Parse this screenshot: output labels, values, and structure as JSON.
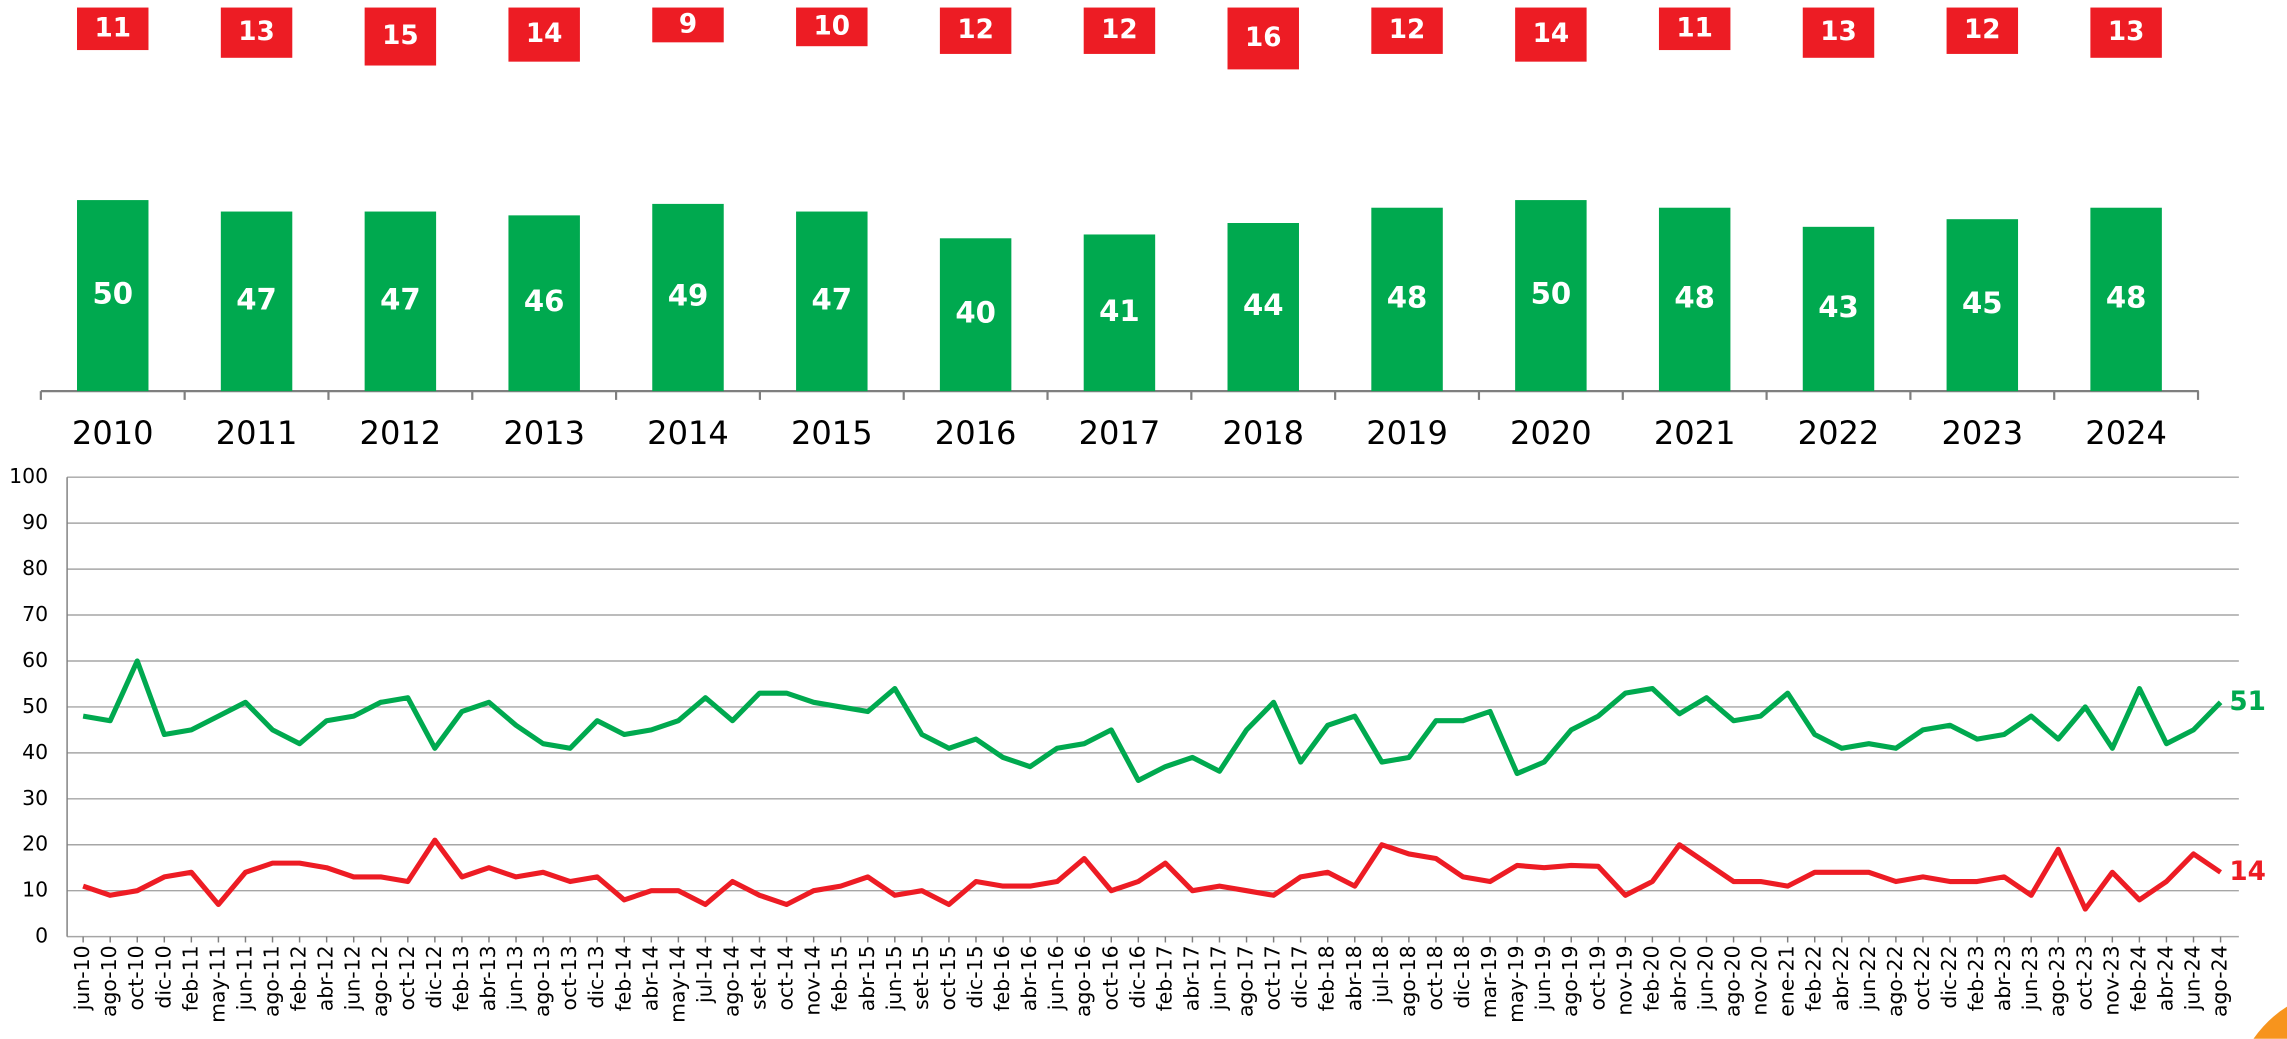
{
  "chart_data": [
    {
      "type": "bar",
      "categories": [
        "2010",
        "2011",
        "2012",
        "2013",
        "2014",
        "2015",
        "2016",
        "2017",
        "2018",
        "2019",
        "2020",
        "2021",
        "2022",
        "2023",
        "2024"
      ],
      "series": [
        {
          "color": "#00a94f",
          "values": [
            50,
            47,
            47,
            46,
            49,
            47,
            40,
            41,
            44,
            48,
            50,
            48,
            43,
            45,
            48
          ]
        },
        {
          "color": "#ed1c24",
          "values": [
            11,
            13,
            15,
            14,
            9,
            10,
            12,
            12,
            16,
            12,
            14,
            11,
            13,
            12,
            13
          ]
        }
      ]
    },
    {
      "type": "line",
      "categories": [
        "jun-10",
        "ago-10",
        "oct-10",
        "dic-10",
        "feb-11",
        "may-11",
        "jun-11",
        "ago-11",
        "feb-12",
        "abr-12",
        "jun-12",
        "ago-12",
        "oct-12",
        "dic-12",
        "feb-13",
        "abr-13",
        "jun-13",
        "ago-13",
        "oct-13",
        "dic-13",
        "feb-14",
        "abr-14",
        "may-14",
        "jul-14",
        "ago-14",
        "set-14",
        "oct-14",
        "nov-14",
        "feb-15",
        "abr-15",
        "jun-15",
        "set-15",
        "oct-15",
        "dic-15",
        "feb-16",
        "abr-16",
        "jun-16",
        "ago-16",
        "oct-16",
        "dic-16",
        "feb-17",
        "abr-17",
        "jun-17",
        "ago-17",
        "oct-17",
        "dic-17",
        "feb-18",
        "abr-18",
        "jul-18",
        "ago-18",
        "oct-18",
        "dic-18",
        "mar-19",
        "may-19",
        "jun-19",
        "ago-19",
        "oct-19",
        "nov-19",
        "feb-20",
        "abr-20",
        "jun-20",
        "ago-20",
        "nov-20",
        "ene-21",
        "feb-22",
        "abr-22",
        "jun-22",
        "ago-22",
        "oct-22",
        "dic-22",
        "feb-23",
        "abr-23",
        "jun-23",
        "ago-23",
        "oct-23",
        "nov-23",
        "feb-24",
        "abr-24",
        "jun-24",
        "ago-24"
      ],
      "series": [
        {
          "color": "#00a94f",
          "values": [
            48,
            47,
            60,
            44,
            45,
            48,
            51,
            45,
            42,
            47,
            48,
            51,
            52,
            41,
            49,
            51,
            46,
            42,
            41,
            47,
            44,
            45,
            47,
            52,
            47,
            53,
            53,
            51,
            50,
            49,
            54,
            44,
            41,
            43,
            39,
            37,
            41,
            42,
            45,
            34,
            37,
            39,
            36,
            45,
            51,
            38,
            46,
            48,
            38,
            39,
            47,
            47,
            49,
            35.5,
            38,
            45,
            48,
            53,
            54,
            48.5,
            52,
            47,
            48,
            53,
            44,
            41,
            42,
            41,
            45,
            46,
            43,
            44,
            48,
            43,
            50,
            41,
            54,
            42,
            45,
            51
          ]
        },
        {
          "color": "#ed1c24",
          "values": [
            11,
            9,
            10,
            13,
            14,
            7,
            14,
            16,
            16,
            15,
            13,
            13,
            12,
            21,
            13,
            15,
            13,
            14,
            12,
            13,
            8,
            10,
            10,
            7,
            12,
            9,
            7,
            10,
            11,
            13,
            9,
            10,
            7,
            12,
            11,
            11,
            12,
            17,
            10,
            12,
            16,
            10,
            11,
            10,
            9,
            13,
            14,
            11,
            20,
            18,
            17,
            13,
            12,
            15.5,
            15,
            15.5,
            15.3,
            9,
            12,
            20,
            16,
            12,
            12,
            11,
            14,
            14,
            14,
            12,
            13,
            12,
            12,
            13,
            9,
            19,
            6,
            14,
            8,
            12,
            18,
            14
          ]
        }
      ],
      "ylim": [
        0,
        100
      ],
      "yticks": [
        0,
        10,
        20,
        30,
        40,
        50,
        60,
        70,
        80,
        90,
        100
      ],
      "grid": true
    }
  ]
}
